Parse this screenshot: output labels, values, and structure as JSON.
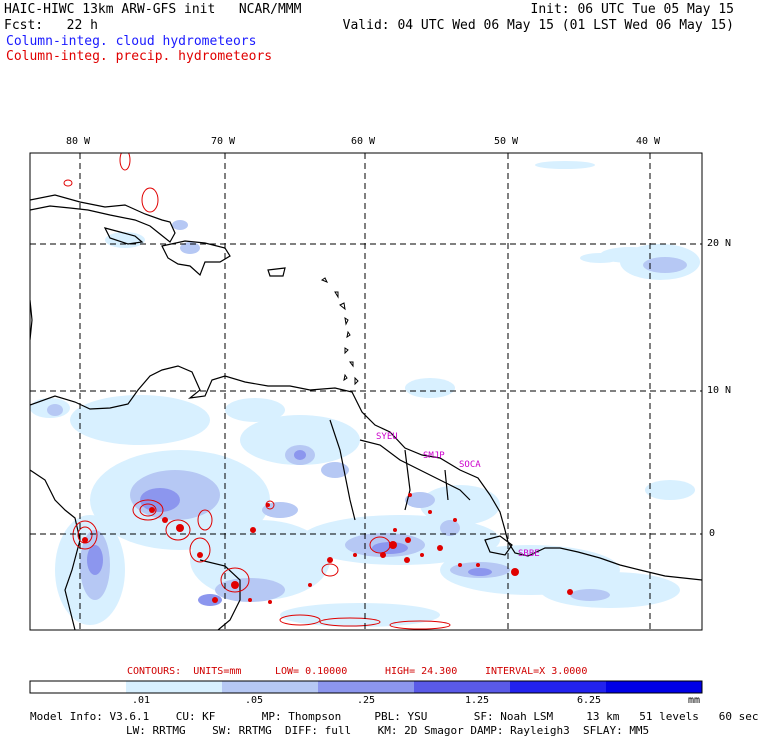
{
  "header": {
    "model_title": "HAIC-HIWC 13km ARW-GFS init",
    "org": "NCAR/MMM",
    "init": "Init: 06 UTC Tue 05 May 15",
    "fcst_label": "Fcst:",
    "fcst_value": "22 h",
    "valid": "Valid: 04 UTC Wed 06 May 15 (01 LST Wed 06 May 15)"
  },
  "legend": {
    "cloud_label": "Column-integ. cloud hydrometeors",
    "precip_label": "Column-integ. precip. hydrometeors"
  },
  "map": {
    "longitude_labels": [
      "80 W",
      "70 W",
      "60 W",
      "50 W",
      "40 W"
    ],
    "latitude_labels": [
      "20 N",
      "10 N",
      "0"
    ],
    "stations": [
      "SYEU",
      "SMJP",
      "SOCA",
      "SBBE"
    ]
  },
  "contours": {
    "units": "CONTOURS:  UNITS=mm",
    "low": "LOW= 0.10000",
    "high": "HIGH= 24.300",
    "interval": "INTERVAL=X 3.0000"
  },
  "colorbar": {
    "labels": [
      ".01",
      ".05",
      ".25",
      "1.25",
      "6.25",
      "mm"
    ],
    "colors": [
      "#ffffff",
      "#d8f0ff",
      "#b6c8f4",
      "#8c96ee",
      "#5a5ae8",
      "#2222ee",
      "#0000e6"
    ]
  },
  "model_info": {
    "line1": "Model Info: V3.6.1    CU: KF       MP: Thompson     PBL: YSU       SF: Noah LSM     13 km   51 levels   60 sec",
    "line2": "LW: RRTMG    SW: RRTMG  DIFF: full    KM: 2D Smagor DAMP: Rayleigh3  SFLAY: MM5"
  },
  "colors": {
    "cloud_text": "#1a1aff",
    "precip_text": "#e00000",
    "station_text": "#cc00cc",
    "contour_line": "#e00000"
  }
}
